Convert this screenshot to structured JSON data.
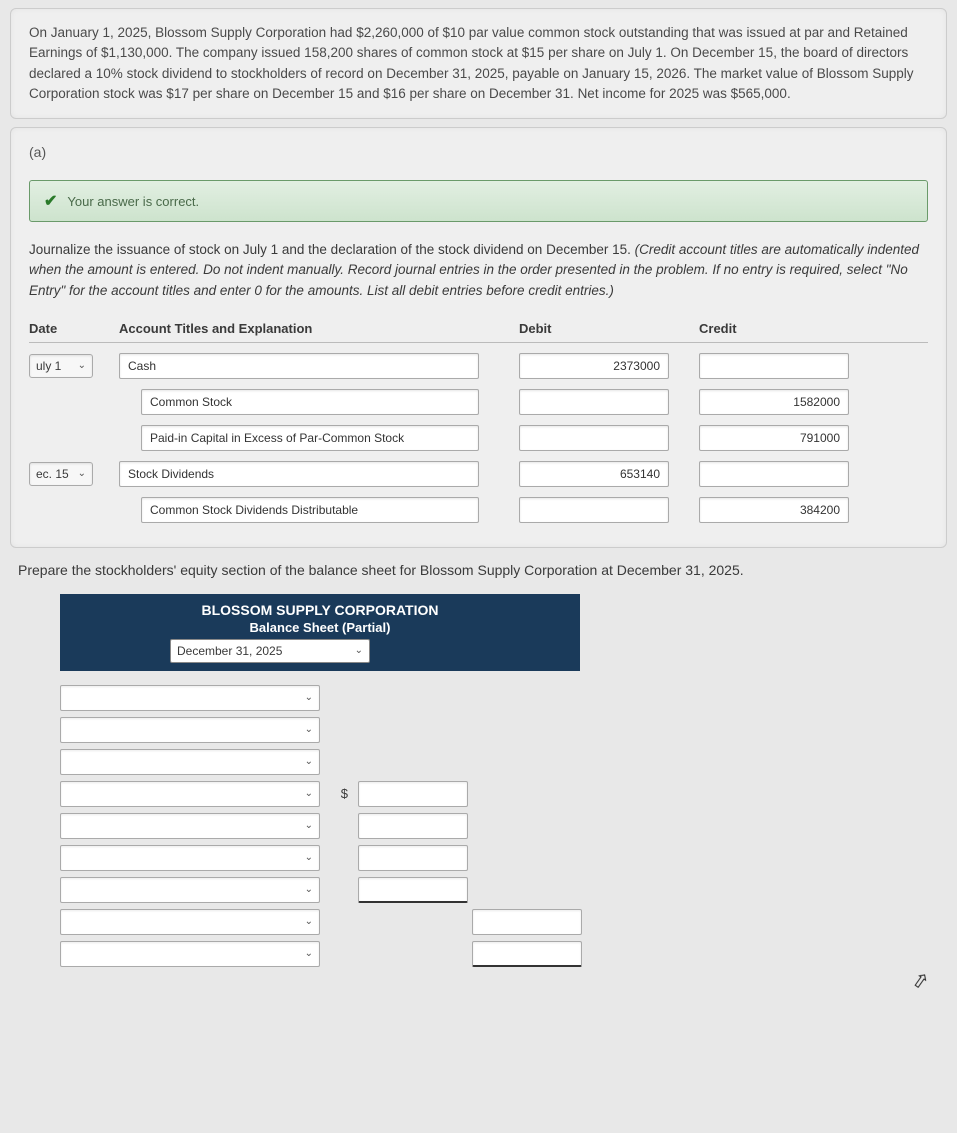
{
  "problem": {
    "text": "On January 1, 2025, Blossom Supply Corporation had $2,260,000 of $10 par value common stock outstanding that was issued at par and Retained Earnings of $1,130,000. The company issued 158,200 shares of common stock at $15 per share on July 1. On December 15, the board of directors declared a 10% stock dividend to stockholders of record on December 31, 2025, payable on January 15, 2026. The market value of Blossom Supply Corporation stock was $17 per share on December 15 and $16 per share on December 31. Net income for 2025 was $565,000."
  },
  "part_a": {
    "label": "(a)",
    "banner": "Your answer is correct.",
    "instructions_plain": "Journalize the issuance of stock on July 1 and the declaration of the stock dividend on December 15. ",
    "instructions_italic": "(Credit account titles are automatically indented when the amount is entered. Do not indent manually. Record journal entries in the order presented in the problem. If no entry is required, select \"No Entry\" for the account titles and enter 0 for the amounts. List all debit entries before credit entries.)",
    "headers": {
      "date": "Date",
      "acct": "Account Titles and Explanation",
      "debit": "Debit",
      "credit": "Credit"
    },
    "rows": [
      {
        "date": "uly 1",
        "acct": "Cash",
        "indent": 0,
        "debit": "2373000",
        "credit": ""
      },
      {
        "date": "",
        "acct": "Common Stock",
        "indent": 1,
        "debit": "",
        "credit": "1582000"
      },
      {
        "date": "",
        "acct": "Paid-in Capital in Excess of Par-Common Stock",
        "indent": 1,
        "debit": "",
        "credit": "791000"
      },
      {
        "date": "ec. 15",
        "acct": "Stock Dividends",
        "indent": 0,
        "debit": "653140",
        "credit": ""
      },
      {
        "date": "",
        "acct": "Common Stock Dividends Distributable",
        "indent": 1,
        "debit": "",
        "credit": "384200"
      }
    ]
  },
  "part_b": {
    "text": "Prepare the stockholders' equity section of the balance sheet for Blossom Supply Corporation at December 31, 2025.",
    "company": "BLOSSOM SUPPLY CORPORATION",
    "title": "Balance Sheet (Partial)",
    "date": "December 31, 2025",
    "dollar": "$",
    "rows": [
      {
        "label_w": 260,
        "col1": false,
        "col2": false
      },
      {
        "label_w": 260,
        "col1": false,
        "col2": false
      },
      {
        "label_w": 260,
        "col1": false,
        "col2": false
      },
      {
        "label_w": 260,
        "dollar": true,
        "col1": true,
        "col2": false
      },
      {
        "label_w": 260,
        "col1": true,
        "col2": false
      },
      {
        "label_w": 260,
        "col1": true,
        "col2": false
      },
      {
        "label_w": 260,
        "col1": true,
        "col1_ul": true,
        "col2": false
      },
      {
        "label_w": 260,
        "col1": false,
        "col2": true
      },
      {
        "label_w": 260,
        "col1": false,
        "col2": true,
        "col2_ul": true
      }
    ]
  },
  "colors": {
    "header_bg": "#1a3a5a",
    "banner_border": "#6a9a6a",
    "check": "#2a7a2a"
  }
}
